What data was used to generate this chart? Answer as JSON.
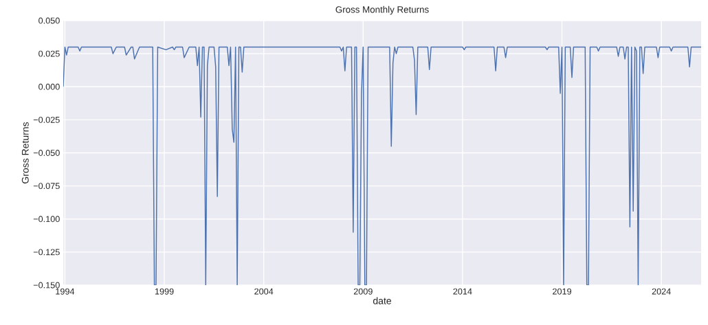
{
  "chart_data": {
    "type": "line",
    "title": "Gross Monthly Returns",
    "xlabel": "date",
    "ylabel": "Gross Returns",
    "color": "#4c72b0",
    "grid": true,
    "xlim": [
      "1993-12",
      "2026-01"
    ],
    "xticks": [
      {
        "value": "1994",
        "label": "1994"
      },
      {
        "value": "1999",
        "label": "1999"
      },
      {
        "value": "2004",
        "label": "2004"
      },
      {
        "value": "2009",
        "label": "2009"
      },
      {
        "value": "2014",
        "label": "2014"
      },
      {
        "value": "2019",
        "label": "2019"
      },
      {
        "value": "2024",
        "label": "2024"
      }
    ],
    "ylim": [
      -0.15,
      0.05
    ],
    "yticks": [
      {
        "value": -0.15,
        "label": "−0.150"
      },
      {
        "value": -0.125,
        "label": "−0.125"
      },
      {
        "value": -0.1,
        "label": "−0.100"
      },
      {
        "value": -0.075,
        "label": "−0.075"
      },
      {
        "value": -0.05,
        "label": "−0.050"
      },
      {
        "value": -0.025,
        "label": "−0.025"
      },
      {
        "value": 0,
        "label": "0.000"
      },
      {
        "value": 0.025,
        "label": "0.025"
      },
      {
        "value": 0.05,
        "label": "0.050"
      }
    ],
    "x": [
      "1993-12",
      "1994-01",
      "1994-02",
      "1994-03",
      "1994-09",
      "1994-10",
      "1994-11",
      "1996-05",
      "1996-06",
      "1996-08",
      "1997-01",
      "1997-02",
      "1997-05",
      "1997-06",
      "1997-07",
      "1997-10",
      "1998-06",
      "1998-07",
      "1998-08",
      "1998-09",
      "1999-02",
      "1999-06",
      "1999-07",
      "1999-08",
      "1999-12",
      "2000-01",
      "2000-04",
      "2000-08",
      "2000-09",
      "2000-10",
      "2000-11",
      "2000-12",
      "2001-01",
      "2001-02",
      "2001-03",
      "2001-04",
      "2001-07",
      "2001-08",
      "2001-09",
      "2001-10",
      "2002-03",
      "2002-04",
      "2002-05",
      "2002-06",
      "2002-07",
      "2002-08",
      "2002-09",
      "2002-10",
      "2002-11",
      "2002-12",
      "2003-01",
      "2007-11",
      "2007-12",
      "2008-01",
      "2008-02",
      "2008-03",
      "2008-06",
      "2008-07",
      "2008-08",
      "2008-09",
      "2008-10",
      "2008-11",
      "2008-12",
      "2009-01",
      "2009-02",
      "2009-03",
      "2009-04",
      "2010-05",
      "2010-06",
      "2010-07",
      "2010-08",
      "2010-09",
      "2010-10",
      "2011-07",
      "2011-08",
      "2011-09",
      "2011-10",
      "2012-04",
      "2012-05",
      "2012-06",
      "2014-01",
      "2014-02",
      "2014-03",
      "2015-08",
      "2015-09",
      "2015-10",
      "2016-02",
      "2016-03",
      "2016-04",
      "2018-03",
      "2018-04",
      "2018-05",
      "2018-11",
      "2018-12",
      "2019-01",
      "2019-02",
      "2019-03",
      "2019-06",
      "2019-07",
      "2019-08",
      "2020-03",
      "2020-04",
      "2020-05",
      "2020-06",
      "2020-10",
      "2020-11",
      "2020-12",
      "2021-10",
      "2021-11",
      "2021-12",
      "2022-02",
      "2022-03",
      "2022-04",
      "2022-05",
      "2022-06",
      "2022-07",
      "2022-08",
      "2022-09",
      "2022-10",
      "2022-11",
      "2022-12",
      "2023-01",
      "2023-02",
      "2023-03",
      "2023-10",
      "2023-11",
      "2023-12",
      "2024-06",
      "2024-07",
      "2024-08",
      "2025-05",
      "2025-06",
      "2025-07",
      "2026-01"
    ],
    "values": [
      0.0,
      0.03,
      0.024,
      0.03,
      0.03,
      0.027,
      0.03,
      0.03,
      0.025,
      0.03,
      0.03,
      0.024,
      0.03,
      0.03,
      0.021,
      0.03,
      0.03,
      -0.15,
      -0.15,
      0.03,
      0.028,
      0.03,
      0.028,
      0.03,
      0.03,
      0.022,
      0.03,
      0.03,
      0.016,
      0.03,
      -0.023,
      0.03,
      0.03,
      -0.15,
      0.016,
      0.03,
      0.03,
      0.015,
      -0.083,
      0.03,
      0.03,
      0.016,
      0.03,
      -0.032,
      -0.042,
      0.03,
      -0.15,
      0.03,
      0.03,
      0.011,
      0.03,
      0.03,
      0.027,
      0.03,
      0.012,
      0.03,
      0.03,
      -0.11,
      0.03,
      0.03,
      -0.15,
      -0.15,
      -0.006,
      0.03,
      -0.15,
      -0.15,
      0.03,
      0.03,
      -0.045,
      0.018,
      0.03,
      0.025,
      0.03,
      0.03,
      0.02,
      -0.021,
      0.03,
      0.03,
      0.013,
      0.03,
      0.03,
      0.028,
      0.03,
      0.03,
      0.012,
      0.03,
      0.03,
      0.022,
      0.03,
      0.03,
      0.028,
      0.03,
      0.03,
      -0.005,
      0.03,
      -0.15,
      0.03,
      0.03,
      0.007,
      0.03,
      0.03,
      -0.15,
      -0.15,
      0.03,
      0.03,
      0.027,
      0.03,
      0.03,
      0.023,
      0.03,
      0.03,
      0.021,
      0.03,
      0.03,
      -0.106,
      0.03,
      -0.094,
      0.03,
      0.027,
      -0.15,
      0.03,
      0.03,
      0.01,
      0.03,
      0.03,
      0.022,
      0.03,
      0.03,
      0.027,
      0.03,
      0.03,
      0.015,
      0.03,
      0.03
    ]
  }
}
